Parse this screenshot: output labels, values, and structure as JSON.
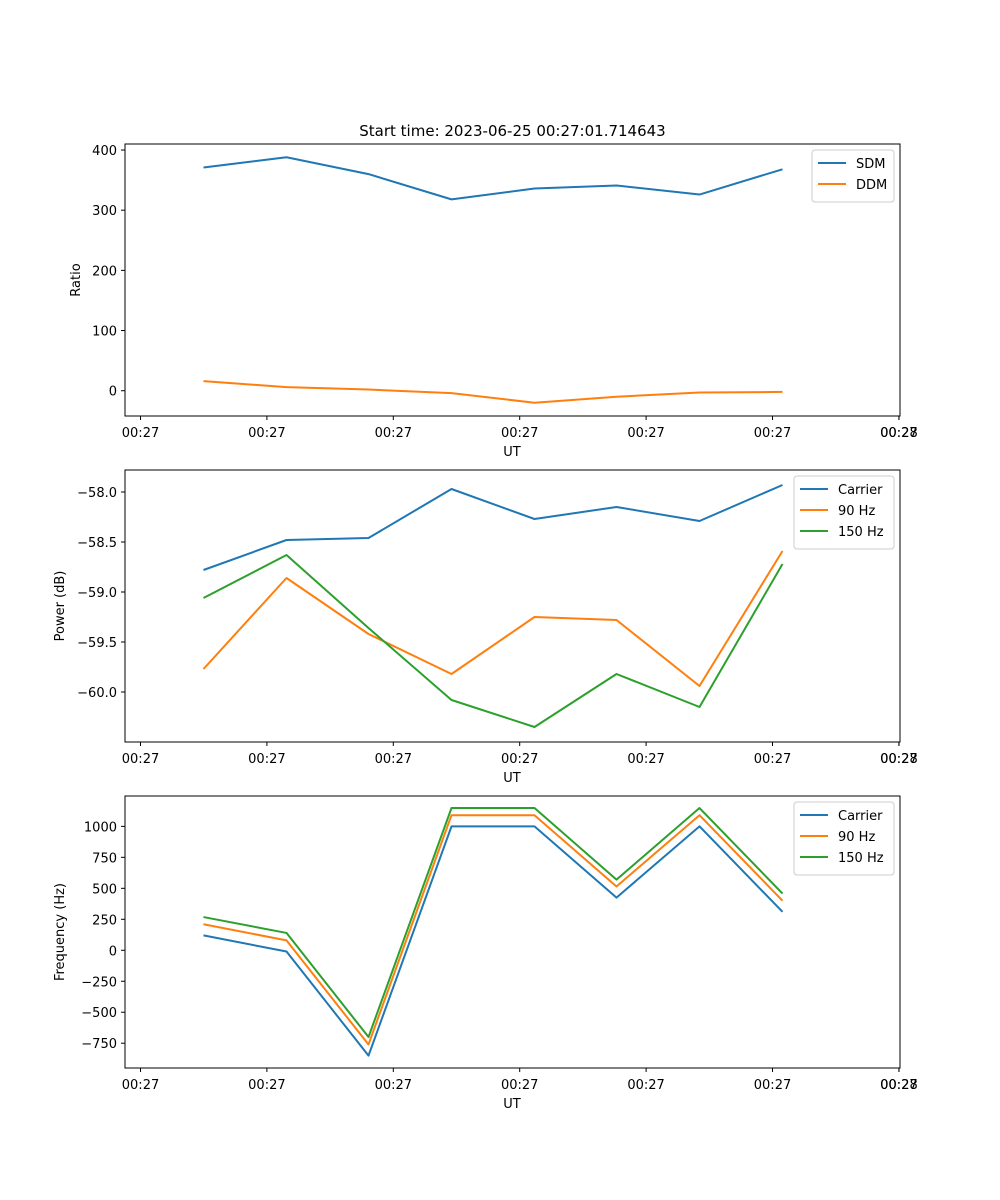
{
  "figure_title": "Start time: 2023-06-25 00:27:01.714643",
  "colors": {
    "blue": "#1f77b4",
    "orange": "#ff7f0e",
    "green": "#2ca02c"
  },
  "chart_data": [
    {
      "type": "line",
      "title": "Start time: 2023-06-25 00:27:01.714643",
      "xlabel": "UT",
      "ylabel": "Ratio",
      "xtick_labels": [
        "00:27",
        "00:27",
        "00:27",
        "00:27",
        "00:27",
        "00:27",
        "00:27",
        "00:28"
      ],
      "x_index": [
        0,
        1,
        2,
        3,
        4,
        5,
        6,
        7
      ],
      "x_domain": [
        -0.43,
        8.73
      ],
      "x_tick_index": [
        0,
        1.5,
        3,
        4.5,
        6,
        7.5,
        9,
        10.5
      ],
      "ylim": [
        -42,
        410
      ],
      "yticks": [
        0,
        100,
        200,
        300,
        400
      ],
      "ytick_labels": [
        "0",
        "100",
        "200",
        "300",
        "400"
      ],
      "legend": "top-right",
      "grid": false,
      "series": [
        {
          "name": "SDM",
          "color": "#1f77b4",
          "values": [
            371,
            388,
            360,
            318,
            336,
            341,
            326,
            368
          ]
        },
        {
          "name": "DDM",
          "color": "#ff7f0e",
          "values": [
            16,
            6,
            2,
            -4,
            -20,
            -10,
            -3,
            -2
          ]
        }
      ]
    },
    {
      "type": "line",
      "xlabel": "UT",
      "ylabel": "Power (dB)",
      "xtick_labels": [
        "00:27",
        "00:27",
        "00:27",
        "00:27",
        "00:27",
        "00:27",
        "00:27",
        "00:28"
      ],
      "x_index": [
        0,
        1,
        2,
        3,
        4,
        5,
        6,
        7
      ],
      "x_domain": [
        -0.43,
        8.73
      ],
      "x_tick_index": [
        0,
        1.5,
        3,
        4.5,
        6,
        7.5,
        9,
        10.5
      ],
      "ylim": [
        -60.5,
        -57.78
      ],
      "yticks": [
        -60.0,
        -59.5,
        -59.0,
        -58.5,
        -58.0
      ],
      "ytick_labels": [
        "−60.0",
        "−59.5",
        "−59.0",
        "−58.5",
        "−58.0"
      ],
      "legend": "top-right",
      "grid": false,
      "series": [
        {
          "name": "Carrier",
          "color": "#1f77b4",
          "values": [
            -58.78,
            -58.48,
            -58.46,
            -57.97,
            -58.27,
            -58.15,
            -58.29,
            -57.93
          ]
        },
        {
          "name": "90 Hz",
          "color": "#ff7f0e",
          "values": [
            -59.77,
            -58.86,
            -59.42,
            -59.82,
            -59.25,
            -59.28,
            -59.94,
            -58.59
          ]
        },
        {
          "name": "150 Hz",
          "color": "#2ca02c",
          "values": [
            -59.06,
            -58.63,
            -59.36,
            -60.08,
            -60.35,
            -59.82,
            -60.15,
            -58.72
          ]
        }
      ]
    },
    {
      "type": "line",
      "xlabel": "UT",
      "ylabel": "Frequency (Hz)",
      "xtick_labels": [
        "00:27",
        "00:27",
        "00:27",
        "00:27",
        "00:27",
        "00:27",
        "00:27",
        "00:28"
      ],
      "x_index": [
        0,
        1,
        2,
        3,
        4,
        5,
        6,
        7
      ],
      "x_domain": [
        -0.43,
        8.73
      ],
      "x_tick_index": [
        0,
        1.5,
        3,
        4.5,
        6,
        7.5,
        9,
        10.5
      ],
      "ylim": [
        -950,
        1245
      ],
      "yticks": [
        -750,
        -500,
        -250,
        0,
        250,
        500,
        750,
        1000
      ],
      "ytick_labels": [
        "−750",
        "−500",
        "−250",
        "0",
        "250",
        "500",
        "750",
        "1000"
      ],
      "legend": "top-right",
      "grid": false,
      "series": [
        {
          "name": "Carrier",
          "color": "#1f77b4",
          "values": [
            120,
            -10,
            -850,
            1000,
            1000,
            425,
            1000,
            310
          ]
        },
        {
          "name": "90 Hz",
          "color": "#ff7f0e",
          "values": [
            210,
            80,
            -760,
            1090,
            1090,
            515,
            1090,
            400
          ]
        },
        {
          "name": "150 Hz",
          "color": "#2ca02c",
          "values": [
            268,
            140,
            -700,
            1148,
            1148,
            570,
            1148,
            458
          ]
        }
      ]
    }
  ]
}
